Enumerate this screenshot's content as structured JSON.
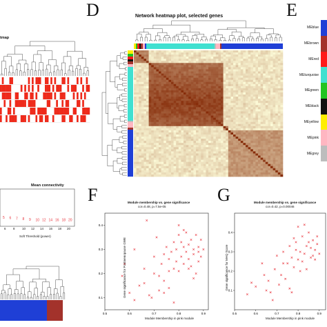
{
  "panel_a": {
    "title_fragment": "tmap"
  },
  "panel_b": {
    "title": "Mean connectivity",
    "xlabel": "Soft Threshold (power)",
    "tick_labels": [
      "6",
      "8",
      "10",
      "12",
      "14",
      "16",
      "18",
      "20"
    ],
    "point_labels": [
      "5",
      "6",
      "7",
      "8",
      "9",
      "10",
      "12",
      "14",
      "16",
      "18",
      "20"
    ]
  },
  "panel_d": {
    "letter": "D",
    "title": "Network heatmap plot, selected genes"
  },
  "panel_e": {
    "letter": "E",
    "modules": [
      {
        "label": "MEblue",
        "color": "#1f3fd6"
      },
      {
        "label": "MEbrown",
        "color": "#a3322b"
      },
      {
        "label": "MEred",
        "color": "#ff1a1a"
      },
      {
        "label": "MEturquoise",
        "color": "#40e0d0"
      },
      {
        "label": "MEgreen",
        "color": "#22c422"
      },
      {
        "label": "MEblack",
        "color": "#111111"
      },
      {
        "label": "MEyellow",
        "color": "#ffee00"
      },
      {
        "label": "MEpink",
        "color": "#ffb6c1"
      },
      {
        "label": "MEgrey",
        "color": "#bdbdbd"
      }
    ]
  },
  "chart_data": [
    {
      "panel": "F",
      "type": "scatter",
      "title": "Module membership vs. gene significance",
      "subtitle": "cor=0.48, p=7.5e-05",
      "xlabel": "Module Membership in pink module",
      "ylabel": "Gene significance for Postmenopause GWE",
      "xlim": [
        0.5,
        0.92
      ],
      "ylim": [
        0.05,
        0.45
      ],
      "x_ticks": [
        "0.5",
        "0.6",
        "0.7",
        "0.8",
        "0.9"
      ],
      "y_ticks": [
        "0.1",
        "0.2",
        "0.3",
        "0.4"
      ],
      "color": "#e8343c",
      "x": [
        0.57,
        0.6,
        0.62,
        0.64,
        0.66,
        0.67,
        0.68,
        0.69,
        0.7,
        0.71,
        0.72,
        0.73,
        0.74,
        0.74,
        0.75,
        0.76,
        0.76,
        0.77,
        0.78,
        0.78,
        0.79,
        0.79,
        0.8,
        0.8,
        0.81,
        0.81,
        0.82,
        0.82,
        0.83,
        0.83,
        0.84,
        0.84,
        0.85,
        0.85,
        0.86,
        0.86,
        0.87,
        0.87,
        0.88,
        0.88,
        0.89,
        0.89,
        0.9,
        0.78,
        0.72,
        0.66,
        0.8,
        0.84,
        0.7,
        0.62,
        0.86,
        0.76,
        0.82,
        0.74,
        0.58,
        0.88
      ],
      "y": [
        0.19,
        0.12,
        0.3,
        0.15,
        0.22,
        0.42,
        0.11,
        0.1,
        0.2,
        0.35,
        0.13,
        0.24,
        0.17,
        0.28,
        0.31,
        0.14,
        0.26,
        0.29,
        0.22,
        0.33,
        0.25,
        0.3,
        0.21,
        0.36,
        0.27,
        0.33,
        0.24,
        0.31,
        0.29,
        0.37,
        0.26,
        0.32,
        0.23,
        0.34,
        0.28,
        0.3,
        0.2,
        0.36,
        0.25,
        0.31,
        0.27,
        0.34,
        0.3,
        0.08,
        0.19,
        0.16,
        0.4,
        0.22,
        0.27,
        0.09,
        0.18,
        0.21,
        0.38,
        0.12,
        0.24,
        0.29
      ]
    },
    {
      "panel": "G",
      "type": "scatter",
      "title": "Module membership vs. gene significance",
      "subtitle": "cor=0.42, p=0.00046",
      "xlabel": "Module Membership in pink module",
      "ylabel": "Gene significance for MHQ Score",
      "xlim": [
        0.5,
        0.93
      ],
      "ylim": [
        0.0,
        0.5
      ],
      "x_ticks": [
        "0.5",
        "0.6",
        "0.7",
        "0.8",
        "0.9"
      ],
      "y_ticks": [
        "0.1",
        "0.2",
        "0.3",
        "0.4"
      ],
      "color": "#e8343c",
      "x": [
        0.56,
        0.58,
        0.6,
        0.63,
        0.65,
        0.67,
        0.69,
        0.7,
        0.72,
        0.73,
        0.75,
        0.76,
        0.77,
        0.78,
        0.79,
        0.8,
        0.81,
        0.82,
        0.83,
        0.84,
        0.85,
        0.86,
        0.87,
        0.88,
        0.89,
        0.9,
        0.76,
        0.8,
        0.84,
        0.74,
        0.68,
        0.86,
        0.82,
        0.78,
        0.88,
        0.71,
        0.64,
        0.85,
        0.83,
        0.79,
        0.81,
        0.87,
        0.77,
        0.89,
        0.73,
        0.66
      ],
      "y": [
        0.08,
        0.14,
        0.12,
        0.24,
        0.1,
        0.09,
        0.21,
        0.28,
        0.18,
        0.3,
        0.24,
        0.33,
        0.27,
        0.22,
        0.35,
        0.26,
        0.3,
        0.38,
        0.29,
        0.33,
        0.4,
        0.27,
        0.36,
        0.31,
        0.34,
        0.29,
        0.11,
        0.43,
        0.21,
        0.16,
        0.05,
        0.32,
        0.25,
        0.37,
        0.26,
        0.13,
        0.18,
        0.35,
        0.44,
        0.31,
        0.2,
        0.28,
        0.09,
        0.38,
        0.24,
        0.15
      ]
    }
  ]
}
